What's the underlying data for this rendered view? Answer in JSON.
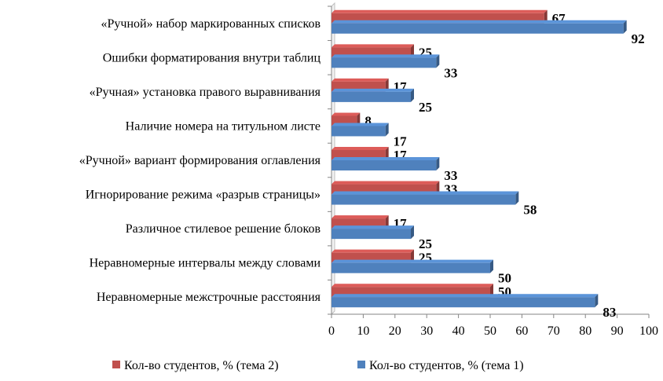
{
  "chart_data": {
    "type": "bar",
    "orientation": "horizontal",
    "categories": [
      "«Ручной» набор маркированных списков",
      "Ошибки форматирования внутри таблиц",
      "«Ручная» установка правого выравнивания",
      "Наличие номера на титульном листе",
      "«Ручной» вариант формирования оглавления",
      "Игнорирование режима «разрыв страницы»",
      "Различное стилевое решение блоков",
      "Неравномерные интервалы между словами",
      "Неравномерные межстрочные расстояния"
    ],
    "series": [
      {
        "name": "Кол-во студентов, % (тема 2)",
        "color": "#c0504d",
        "values": [
          67,
          25,
          17,
          8,
          17,
          33,
          17,
          25,
          50
        ]
      },
      {
        "name": "Кол-во студентов, % (тема 1)",
        "color": "#4f81bd",
        "values": [
          92,
          33,
          25,
          17,
          33,
          58,
          25,
          50,
          83
        ]
      }
    ],
    "xlim": [
      0,
      100
    ],
    "xticks": [
      0,
      10,
      20,
      30,
      40,
      50,
      60,
      70,
      80,
      90,
      100
    ],
    "grid": false,
    "legend_position": "bottom",
    "data_labels": true,
    "title": "",
    "xlabel": "",
    "ylabel": ""
  }
}
